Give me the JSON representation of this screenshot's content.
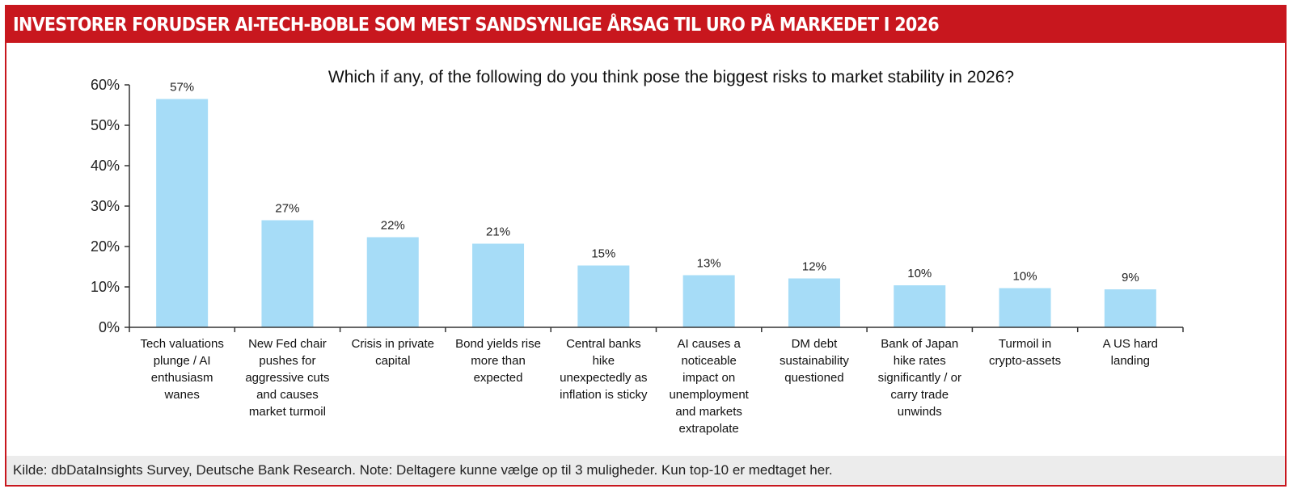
{
  "header": {
    "title": "INVESTORER FORUDSER AI-TECH-BOBLE SOM MEST SANDSYNLIGE ÅRSAG TIL URO PÅ MARKEDET I 2026"
  },
  "footer": {
    "source": "Kilde: dbDataInsights Survey, Deutsche Bank Research.  Note: Deltagere kunne vælge op til 3 muligheder. Kun top-10 er medtaget her."
  },
  "chart_data": {
    "type": "bar",
    "title": "Which if any, of the following do you think pose the biggest risks to market stability in 2026?",
    "xlabel": "",
    "ylabel": "",
    "ylim": [
      0,
      60
    ],
    "yticks": [
      0,
      10,
      20,
      30,
      40,
      50,
      60
    ],
    "ytick_labels": [
      "0%",
      "10%",
      "20%",
      "30%",
      "40%",
      "50%",
      "60%"
    ],
    "grid": false,
    "bar_color": "#a6dcf7",
    "categories": [
      [
        "Tech valuations",
        "plunge / AI",
        "enthusiasm",
        "wanes"
      ],
      [
        "New Fed chair",
        "pushes for",
        "aggressive cuts",
        "and causes",
        "market turmoil"
      ],
      [
        "Crisis in private",
        "capital"
      ],
      [
        "Bond yields rise",
        "more than",
        "expected"
      ],
      [
        "Central banks",
        "hike",
        "unexpectedly as",
        "inflation is sticky"
      ],
      [
        "AI causes a",
        "noticeable",
        "impact on",
        "unemployment",
        "and markets",
        "extrapolate"
      ],
      [
        "DM debt",
        "sustainability",
        "questioned"
      ],
      [
        "Bank of Japan",
        "hike rates",
        "significantly / or",
        "carry trade",
        "unwinds"
      ],
      [
        "Turmoil in",
        "crypto-assets"
      ],
      [
        "A US hard",
        "landing"
      ]
    ],
    "values": [
      56.5,
      26.5,
      22.3,
      20.7,
      15.3,
      12.9,
      12.1,
      10.4,
      9.7,
      9.4
    ],
    "data_labels": [
      "57%",
      "27%",
      "22%",
      "21%",
      "15%",
      "13%",
      "12%",
      "10%",
      "10%",
      "9%"
    ]
  }
}
